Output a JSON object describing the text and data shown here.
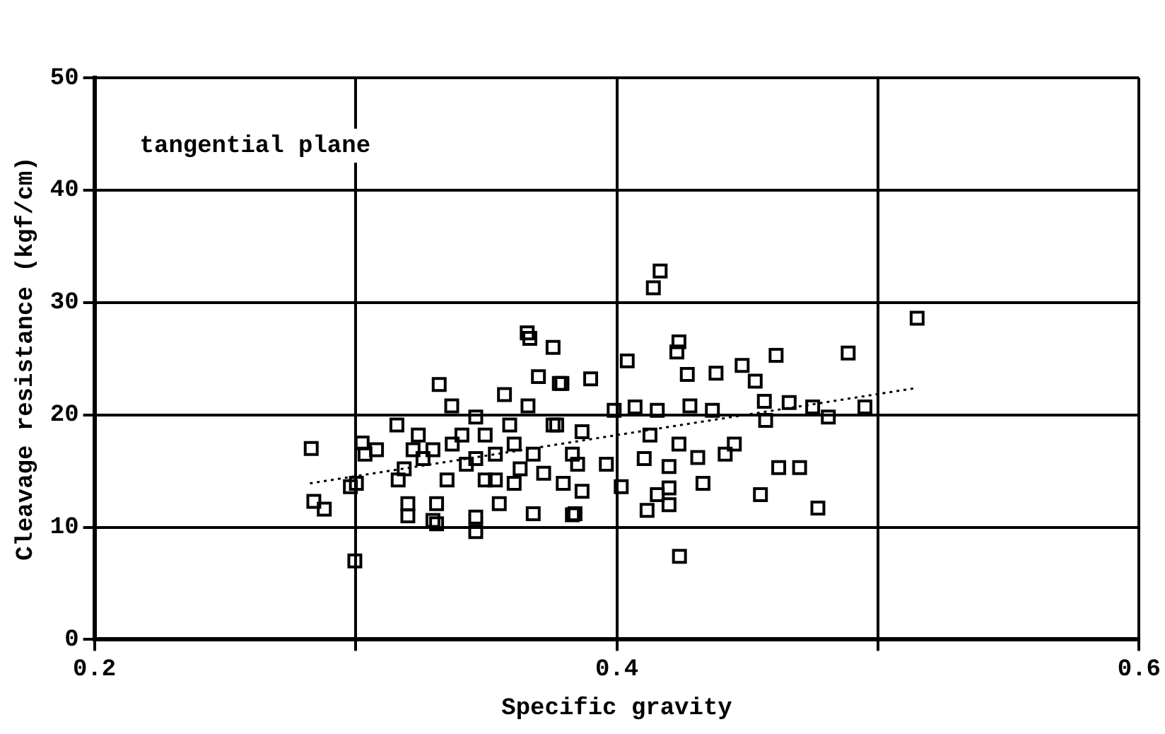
{
  "chart_data": {
    "type": "scatter",
    "xlabel": "Specific gravity",
    "ylabel": "Cleavage resistance (kgf/cm)",
    "annotations": [
      "tangential plane"
    ],
    "xlim": [
      0.2,
      0.6
    ],
    "ylim": [
      0,
      50
    ],
    "xticks": [
      0.2,
      {
        "value": 0.3,
        "label": null
      },
      0.4,
      {
        "value": 0.5,
        "label": null
      },
      0.6
    ],
    "yticks": [
      0,
      10,
      20,
      30,
      40,
      50
    ],
    "grid": true,
    "legend": false,
    "marker": "square",
    "series": [
      {
        "color": "#000000",
        "x": [
          0.283,
          0.284,
          0.288,
          0.2997,
          0.298,
          0.3025,
          0.3036,
          0.308,
          0.3158,
          0.3163,
          0.32,
          0.331,
          0.346,
          0.346,
          0.331,
          0.3258,
          0.324,
          0.332,
          0.3368,
          0.346,
          0.337,
          0.3424,
          0.3535,
          0.357,
          0.366,
          0.37,
          0.3756,
          0.3657,
          0.3667,
          0.378,
          0.3535,
          0.3607,
          0.368,
          0.3756,
          0.383,
          0.368,
          0.384,
          0.355,
          0.3607,
          0.335,
          0.3186,
          0.322,
          0.346,
          0.3496,
          0.359,
          0.3407,
          0.3296,
          0.3496,
          0.363,
          0.372,
          0.3795,
          0.3003,
          0.32,
          0.3296,
          0.4166,
          0.414,
          0.4238,
          0.423,
          0.515,
          0.4886,
          0.462,
          0.47,
          0.455,
          0.477,
          0.495,
          0.481,
          0.424,
          0.383,
          0.433,
          0.4116,
          0.42,
          0.461,
          0.448,
          0.453,
          0.438,
          0.427,
          0.404,
          0.39,
          0.379,
          0.475,
          0.466,
          0.4565,
          0.457,
          0.4415,
          0.428,
          0.4366,
          0.4155,
          0.407,
          0.399,
          0.3867,
          0.377,
          0.385,
          0.396,
          0.4105,
          0.42,
          0.431,
          0.445,
          0.4127,
          0.4238,
          0.4017,
          0.3867,
          0.42,
          0.4155
        ],
        "values": [
          17.0,
          12.3,
          11.6,
          7.0,
          13.6,
          17.5,
          16.5,
          16.9,
          19.1,
          14.2,
          12.1,
          10.3,
          9.6,
          10.9,
          12.1,
          16.1,
          18.2,
          22.7,
          20.8,
          19.8,
          17.4,
          15.6,
          14.2,
          21.8,
          20.8,
          23.4,
          26.0,
          27.3,
          26.8,
          22.8,
          16.5,
          17.4,
          16.5,
          19.1,
          16.5,
          11.2,
          11.2,
          12.1,
          13.9,
          14.2,
          15.2,
          16.9,
          16.1,
          18.2,
          19.1,
          18.2,
          16.9,
          14.2,
          15.2,
          14.8,
          13.9,
          13.9,
          11.0,
          10.6,
          32.8,
          31.3,
          26.5,
          25.6,
          28.6,
          25.5,
          15.3,
          15.3,
          12.9,
          11.7,
          20.7,
          19.8,
          7.4,
          11.1,
          13.9,
          11.5,
          12.0,
          25.3,
          24.4,
          23.0,
          23.7,
          23.6,
          24.8,
          23.2,
          22.8,
          20.7,
          21.1,
          21.2,
          19.5,
          16.5,
          20.8,
          20.4,
          20.4,
          20.7,
          20.4,
          18.5,
          19.1,
          15.6,
          15.6,
          16.1,
          15.4,
          16.2,
          17.4,
          18.2,
          17.4,
          13.6,
          13.2,
          13.5,
          12.9
        ]
      },
      {
        "type": "line",
        "line_style": "dotted",
        "marker": "none",
        "color": "#000000",
        "x": [
          0.2825,
          0.515
        ],
        "values": [
          13.9,
          22.4
        ]
      }
    ]
  }
}
